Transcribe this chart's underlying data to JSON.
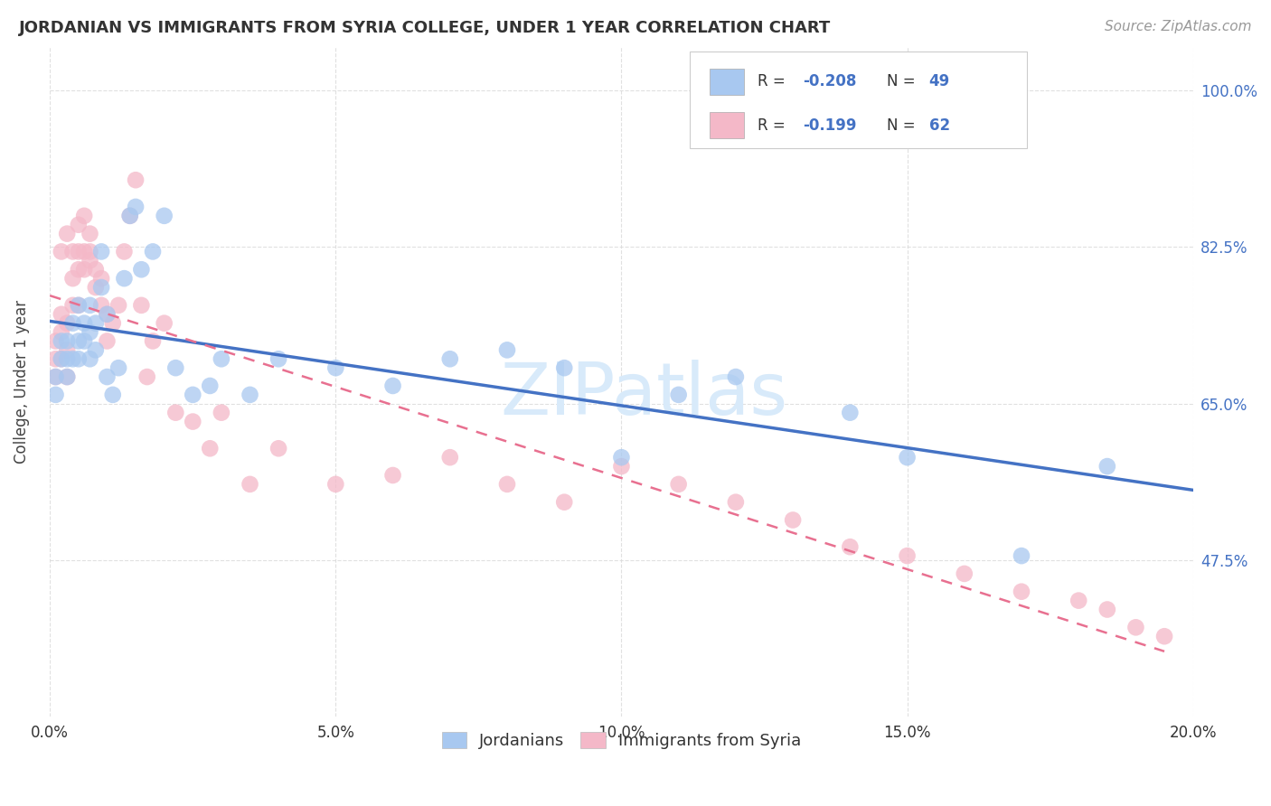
{
  "title": "JORDANIAN VS IMMIGRANTS FROM SYRIA COLLEGE, UNDER 1 YEAR CORRELATION CHART",
  "source": "Source: ZipAtlas.com",
  "xlabel_tick_vals": [
    0.0,
    0.05,
    0.1,
    0.15,
    0.2
  ],
  "ylabel": "College, Under 1 year",
  "ylabel_tick_vals": [
    0.475,
    0.65,
    0.825,
    1.0
  ],
  "ylabel_tick_labels": [
    "47.5%",
    "65.0%",
    "82.5%",
    "100.0%"
  ],
  "xlim": [
    0.0,
    0.2
  ],
  "ylim": [
    0.3,
    1.05
  ],
  "legend_r1": "R = -0.208",
  "legend_n1": "N = 49",
  "legend_r2": "R = -0.199",
  "legend_n2": "N = 62",
  "color_blue": "#A8C8F0",
  "color_pink": "#F4B8C8",
  "color_blue_line": "#4472C4",
  "color_pink_line": "#E87090",
  "color_axis_labels": "#4472C4",
  "color_title": "#333333",
  "color_source": "#999999",
  "color_watermark": "#D8EAFA",
  "grid_color": "#DDDDDD",
  "jordanians_x": [
    0.001,
    0.001,
    0.002,
    0.002,
    0.003,
    0.003,
    0.003,
    0.004,
    0.004,
    0.005,
    0.005,
    0.005,
    0.006,
    0.006,
    0.007,
    0.007,
    0.007,
    0.008,
    0.008,
    0.009,
    0.009,
    0.01,
    0.01,
    0.011,
    0.012,
    0.013,
    0.014,
    0.015,
    0.016,
    0.018,
    0.02,
    0.022,
    0.025,
    0.028,
    0.03,
    0.035,
    0.04,
    0.05,
    0.06,
    0.07,
    0.08,
    0.09,
    0.1,
    0.11,
    0.12,
    0.14,
    0.15,
    0.17,
    0.185
  ],
  "jordanians_y": [
    0.68,
    0.66,
    0.7,
    0.72,
    0.7,
    0.68,
    0.72,
    0.7,
    0.74,
    0.7,
    0.72,
    0.76,
    0.72,
    0.74,
    0.7,
    0.73,
    0.76,
    0.71,
    0.74,
    0.82,
    0.78,
    0.75,
    0.68,
    0.66,
    0.69,
    0.79,
    0.86,
    0.87,
    0.8,
    0.82,
    0.86,
    0.69,
    0.66,
    0.67,
    0.7,
    0.66,
    0.7,
    0.69,
    0.67,
    0.7,
    0.71,
    0.69,
    0.59,
    0.66,
    0.68,
    0.64,
    0.59,
    0.48,
    0.58
  ],
  "syria_x": [
    0.001,
    0.001,
    0.001,
    0.002,
    0.002,
    0.002,
    0.002,
    0.003,
    0.003,
    0.003,
    0.003,
    0.004,
    0.004,
    0.004,
    0.005,
    0.005,
    0.005,
    0.005,
    0.006,
    0.006,
    0.006,
    0.007,
    0.007,
    0.007,
    0.008,
    0.008,
    0.009,
    0.009,
    0.01,
    0.01,
    0.011,
    0.012,
    0.013,
    0.014,
    0.015,
    0.016,
    0.017,
    0.018,
    0.02,
    0.022,
    0.025,
    0.028,
    0.03,
    0.035,
    0.04,
    0.05,
    0.06,
    0.07,
    0.08,
    0.09,
    0.1,
    0.11,
    0.12,
    0.13,
    0.14,
    0.15,
    0.16,
    0.17,
    0.18,
    0.185,
    0.19,
    0.195
  ],
  "syria_y": [
    0.68,
    0.7,
    0.72,
    0.7,
    0.73,
    0.75,
    0.82,
    0.68,
    0.71,
    0.74,
    0.84,
    0.76,
    0.79,
    0.82,
    0.76,
    0.8,
    0.82,
    0.85,
    0.8,
    0.82,
    0.86,
    0.81,
    0.82,
    0.84,
    0.8,
    0.78,
    0.76,
    0.79,
    0.75,
    0.72,
    0.74,
    0.76,
    0.82,
    0.86,
    0.9,
    0.76,
    0.68,
    0.72,
    0.74,
    0.64,
    0.63,
    0.6,
    0.64,
    0.56,
    0.6,
    0.56,
    0.57,
    0.59,
    0.56,
    0.54,
    0.58,
    0.56,
    0.54,
    0.52,
    0.49,
    0.48,
    0.46,
    0.44,
    0.43,
    0.42,
    0.4,
    0.39
  ],
  "legend_labels_bottom": [
    "Jordanians",
    "Immigrants from Syria"
  ]
}
